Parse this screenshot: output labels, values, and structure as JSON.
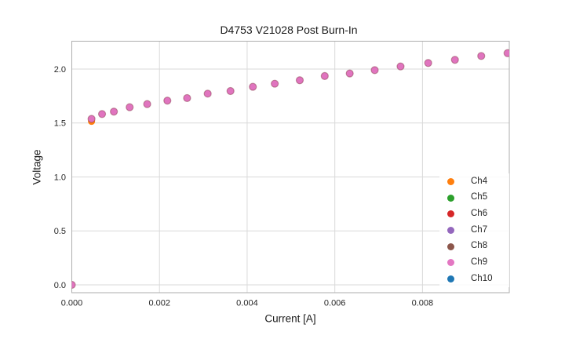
{
  "chart_data": {
    "type": "scatter",
    "title": "D4753 V21028 Post Burn-In",
    "xlabel": "Current [A]",
    "ylabel": "Voltage",
    "xlim": [
      0,
      0.00998
    ],
    "ylim": [
      -0.073,
      2.258
    ],
    "xticks": [
      0,
      0.002,
      0.004,
      0.006,
      0.008
    ],
    "xtick_labels": [
      "0.000",
      "0.002",
      "0.004",
      "0.006",
      "0.008"
    ],
    "yticks": [
      0.0,
      0.5,
      1.0,
      1.5,
      2.0
    ],
    "ytick_labels": [
      "0.0",
      "0.5",
      "1.0",
      "1.5",
      "2.0"
    ],
    "grid": true,
    "legend_position": "lower-right-inside",
    "series": [
      {
        "name": "Ch4",
        "color": "#ff7f0e"
      },
      {
        "name": "Ch5",
        "color": "#2ca02c"
      },
      {
        "name": "Ch6",
        "color": "#d62728"
      },
      {
        "name": "Ch7",
        "color": "#9467bd"
      },
      {
        "name": "Ch8",
        "color": "#8c564b"
      },
      {
        "name": "Ch9",
        "color": "#e377c2"
      },
      {
        "name": "Ch10",
        "color": "#1f77b4"
      }
    ],
    "visible_points_note": "All channels overlap; topmost visible series is Ch9 (pink)",
    "x": [
      0.0,
      0.00045,
      0.00069,
      0.00096,
      0.00132,
      0.00172,
      0.00218,
      0.00263,
      0.0031,
      0.00362,
      0.00413,
      0.00463,
      0.0052,
      0.00577,
      0.00634,
      0.00691,
      0.0075,
      0.00813,
      0.00874,
      0.00934,
      0.00994
    ],
    "y": [
      0.0,
      1.538,
      1.583,
      1.605,
      1.646,
      1.675,
      1.707,
      1.731,
      1.772,
      1.796,
      1.835,
      1.864,
      1.896,
      1.935,
      1.959,
      1.99,
      2.024,
      2.056,
      2.085,
      2.121,
      2.147
    ],
    "ch4_peek_point": {
      "x": 0.00045,
      "y": 1.515
    }
  },
  "colors": {
    "grid": "#d9d9d9",
    "axis_border": "#aeaeae",
    "tick_text": "#262626",
    "point_fill": "#e074bf",
    "point_edge": "rgba(130,52,66,0.45)"
  }
}
